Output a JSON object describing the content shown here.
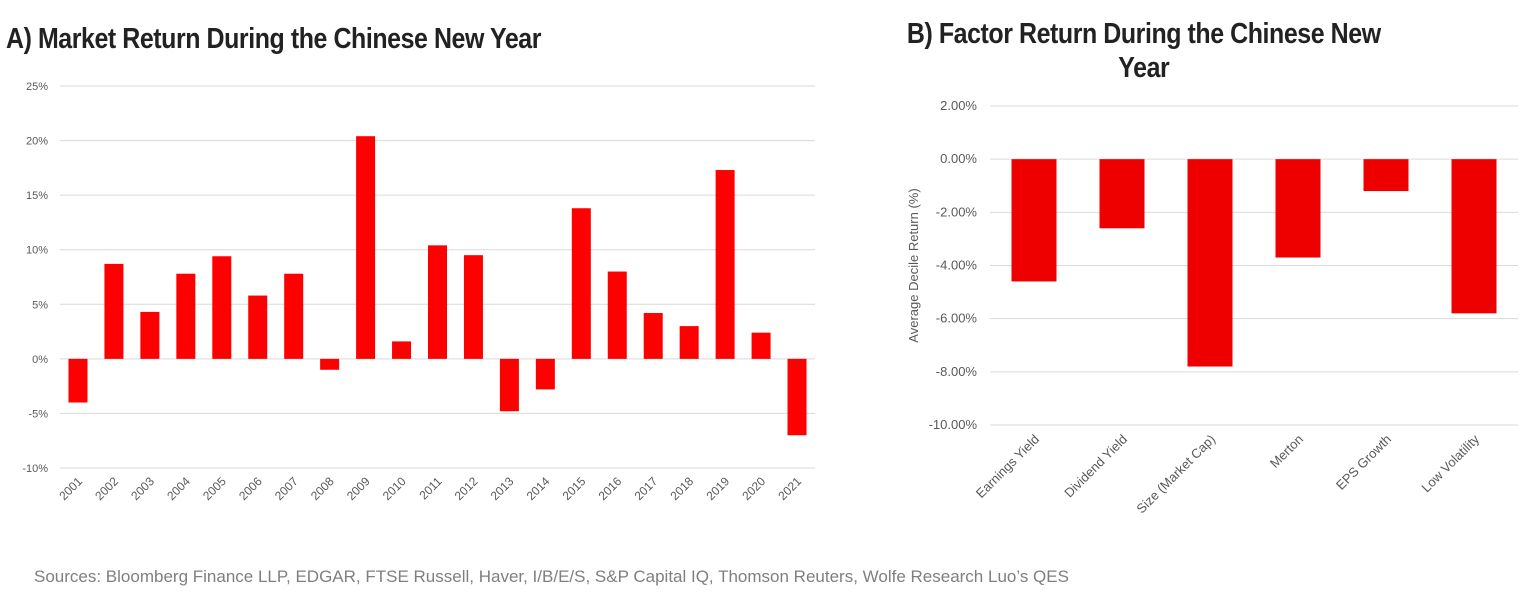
{
  "chart_data": [
    {
      "type": "bar",
      "title": "A) Market Return During the Chinese New Year",
      "xlabel": "",
      "ylabel": "",
      "categories": [
        "2001",
        "2002",
        "2003",
        "2004",
        "2005",
        "2006",
        "2007",
        "2008",
        "2009",
        "2010",
        "2011",
        "2012",
        "2013",
        "2014",
        "2015",
        "2016",
        "2017",
        "2018",
        "2019",
        "2020",
        "2021"
      ],
      "values": [
        -4.0,
        8.7,
        4.3,
        7.8,
        9.4,
        5.8,
        7.8,
        -1.0,
        20.4,
        1.6,
        10.4,
        9.5,
        -4.8,
        -2.8,
        13.8,
        8.0,
        4.2,
        3.0,
        17.3,
        2.4,
        -7.0
      ],
      "ylim": [
        -10,
        25
      ],
      "yticks": [
        -10,
        -5,
        0,
        5,
        10,
        15,
        20,
        25
      ],
      "ytick_labels": [
        "-10%",
        "-5%",
        "0%",
        "5%",
        "10%",
        "15%",
        "20%",
        "25%"
      ],
      "bar_color": "#ff0000",
      "grid": true
    },
    {
      "type": "bar",
      "title": "B) Factor Return During the Chinese New Year",
      "title_lines": [
        "B) Factor Return During the Chinese New",
        "Year"
      ],
      "xlabel": "",
      "ylabel": "Average Decile Return (%)",
      "categories": [
        "Earnings Yield",
        "Dividend Yield",
        "Size (Market Cap)",
        "Merton",
        "EPS Growth",
        "Low Volatility"
      ],
      "values": [
        -4.6,
        -2.6,
        -7.8,
        -3.7,
        -1.2,
        -5.8
      ],
      "ylim": [
        -10,
        2
      ],
      "yticks": [
        -10,
        -8,
        -6,
        -4,
        -2,
        0,
        2
      ],
      "ytick_labels": [
        "-10.00%",
        "-8.00%",
        "-6.00%",
        "-4.00%",
        "-2.00%",
        "0.00%",
        "2.00%"
      ],
      "bar_color": "#ee0000",
      "grid": true
    }
  ],
  "footer": {
    "sources": "Sources: Bloomberg Finance LLP, EDGAR, FTSE Russell, Haver, I/B/E/S, S&P Capital IQ, Thomson Reuters, Wolfe Research Luo’s QES"
  }
}
